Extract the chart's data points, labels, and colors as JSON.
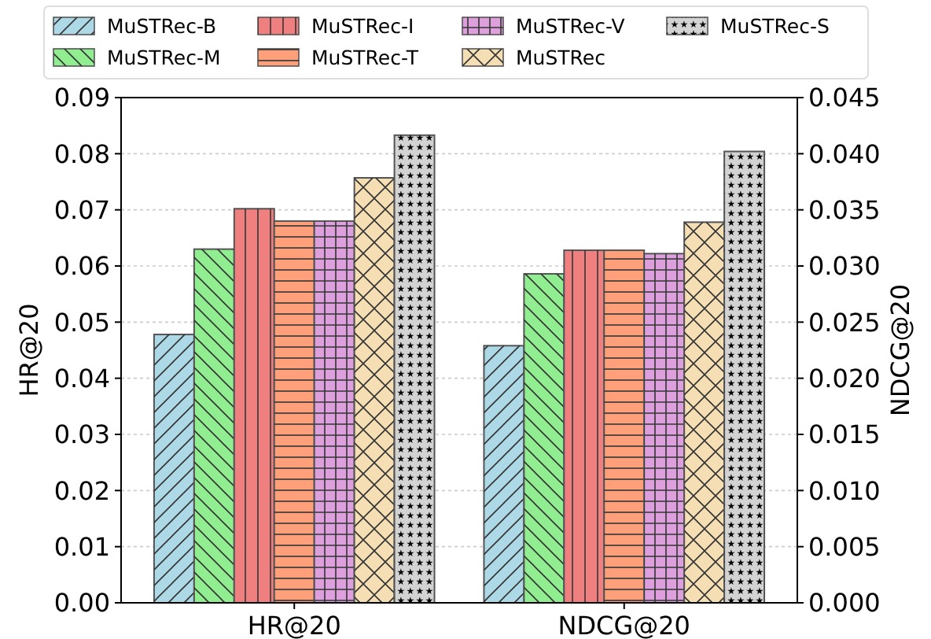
{
  "chart_data": {
    "type": "bar",
    "categories": [
      "HR@20",
      "NDCG@20"
    ],
    "ylabel": "HR@20",
    "y2label": "NDCG@20",
    "ylim": [
      0,
      0.09
    ],
    "yticks": [
      {
        "value": 0,
        "label": "0.00"
      },
      {
        "value": 0.01,
        "label": "0.01"
      },
      {
        "value": 0.02,
        "label": "0.02"
      },
      {
        "value": 0.03,
        "label": "0.03"
      },
      {
        "value": 0.04,
        "label": "0.04"
      },
      {
        "value": 0.05,
        "label": "0.05"
      },
      {
        "value": 0.06,
        "label": "0.06"
      },
      {
        "value": 0.07,
        "label": "0.07"
      },
      {
        "value": 0.08,
        "label": "0.08"
      },
      {
        "value": 0.09,
        "label": "0.09"
      }
    ],
    "y2lim": [
      0,
      0.045
    ],
    "y2ticks": [
      {
        "value": 0,
        "label": "0.000"
      },
      {
        "value": 0.005,
        "label": "0.005"
      },
      {
        "value": 0.01,
        "label": "0.010"
      },
      {
        "value": 0.015,
        "label": "0.015"
      },
      {
        "value": 0.02,
        "label": "0.020"
      },
      {
        "value": 0.025,
        "label": "0.025"
      },
      {
        "value": 0.03,
        "label": "0.030"
      },
      {
        "value": 0.035,
        "label": "0.035"
      },
      {
        "value": 0.04,
        "label": "0.040"
      },
      {
        "value": 0.045,
        "label": "0.045"
      }
    ],
    "grid": "y",
    "legend": "top",
    "series": [
      {
        "name": "MuSTRec-B",
        "color": "#add8e6",
        "values": [
          0.0478,
          null
        ]
      },
      {
        "name": "MuSTRec-M",
        "color": "#90ee90",
        "values": [
          0.063,
          null
        ]
      },
      {
        "name": "MuSTRec-I",
        "color": "#f08080",
        "values": [
          0.0702,
          null
        ]
      },
      {
        "name": "MuSTRec-T",
        "color": "#ffa07a",
        "values": [
          0.068,
          null
        ]
      },
      {
        "name": "MuSTRec-V",
        "color": "#dda0dd",
        "values": [
          0.068,
          null
        ]
      },
      {
        "name": "MuSTRec",
        "color": "#f5deb3",
        "values": [
          0.0757,
          null
        ]
      },
      {
        "name": "MuSTRec-S",
        "color": "#d3d3d3",
        "values": [
          0.0833,
          null
        ]
      },
      {
        "color": "#add8e6",
        "values": [
          null,
          0.0229
        ],
        "axis": "y2"
      },
      {
        "color": "#90ee90",
        "values": [
          null,
          0.0293
        ],
        "axis": "y2"
      },
      {
        "color": "#f08080",
        "values": [
          null,
          0.0314
        ],
        "axis": "y2"
      },
      {
        "color": "#ffa07a",
        "values": [
          null,
          0.0314
        ],
        "axis": "y2"
      },
      {
        "color": "#dda0dd",
        "values": [
          null,
          0.0311
        ],
        "axis": "y2"
      },
      {
        "color": "#f5deb3",
        "values": [
          null,
          0.0339
        ],
        "axis": "y2"
      },
      {
        "color": "#d3d3d3",
        "values": [
          null,
          0.0402
        ],
        "axis": "y2"
      }
    ]
  }
}
